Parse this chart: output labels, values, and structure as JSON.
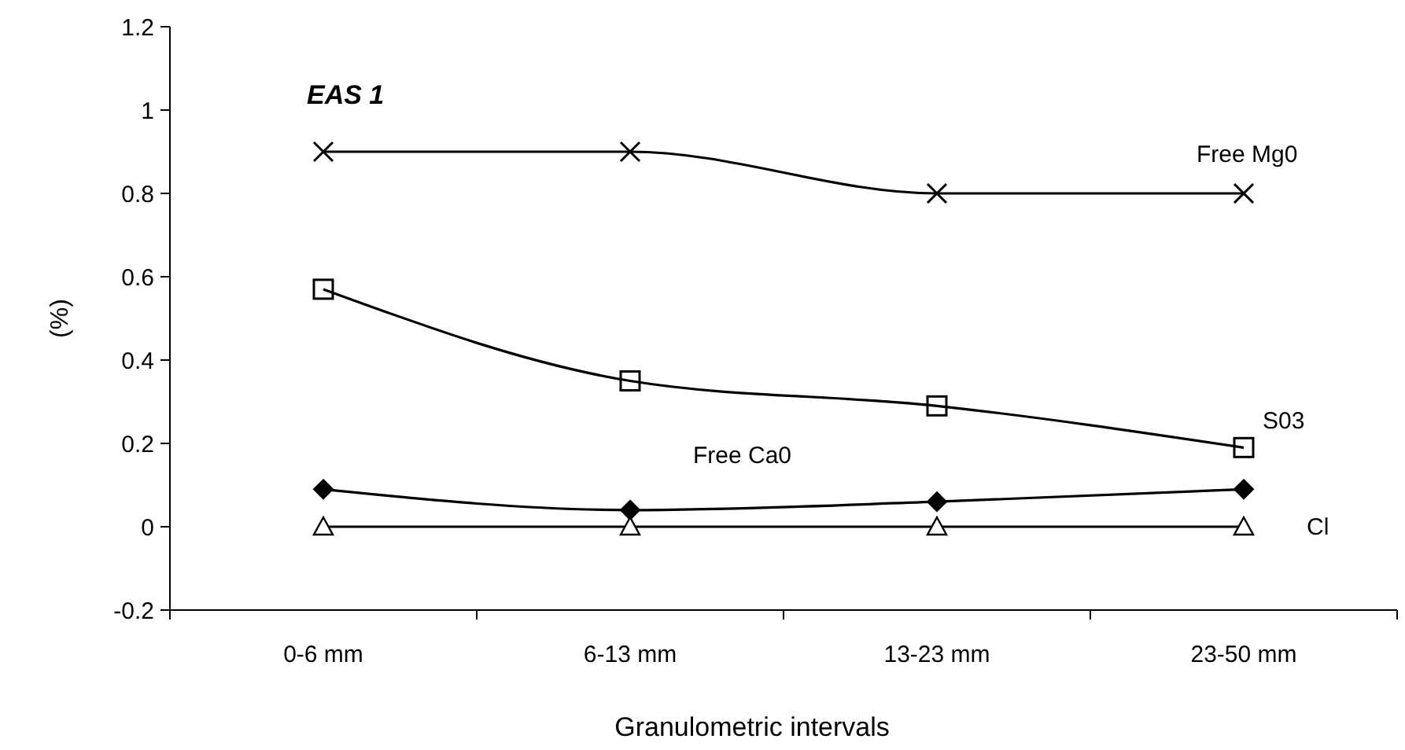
{
  "chart_data": {
    "type": "line",
    "title": "EAS 1",
    "xlabel": "Granulometric intervals",
    "ylabel": "(%)",
    "categories": [
      "0-6 mm",
      "6-13 mm",
      "13-23 mm",
      "23-50 mm"
    ],
    "series": [
      {
        "name": "Free Mg0",
        "color": "#000000",
        "marker": "cross",
        "values": [
          0.9,
          0.9,
          0.8,
          0.8
        ]
      },
      {
        "name": "S03",
        "color": "#000000",
        "marker": "square",
        "values": [
          0.57,
          0.35,
          0.29,
          0.19
        ]
      },
      {
        "name": "Free Ca0",
        "color": "#000000",
        "marker": "diamond",
        "values": [
          0.09,
          0.04,
          0.06,
          0.09
        ]
      },
      {
        "name": "Cl",
        "color": "#000000",
        "marker": "triangle",
        "values": [
          0,
          0,
          0,
          0
        ]
      }
    ],
    "ylim": [
      -0.2,
      1.2
    ],
    "yticks": [
      -0.2,
      0,
      0.2,
      0.4,
      0.6,
      0.8,
      1,
      1.2
    ],
    "grid": false
  }
}
